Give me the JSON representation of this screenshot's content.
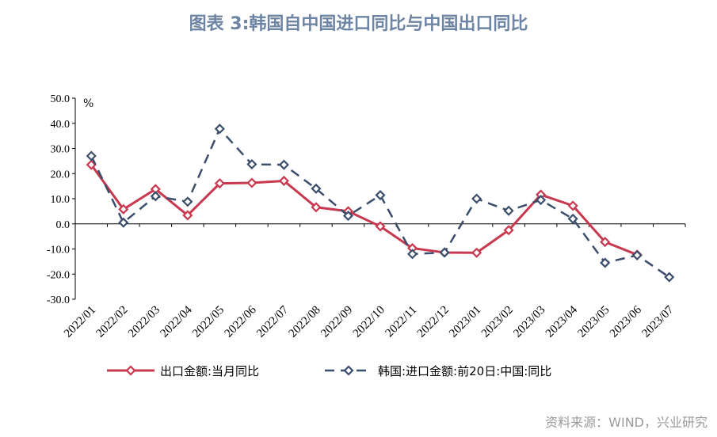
{
  "chart_data": {
    "type": "line",
    "title": "图表 3:韩国自中国进口同比与中国出口同比",
    "ylabel": "%",
    "ylim": [
      -30,
      50
    ],
    "yticks": [
      "50.0",
      "40.0",
      "30.0",
      "20.0",
      "10.0",
      "0.0",
      "-10.0",
      "-20.0",
      "-30.0"
    ],
    "categories": [
      "2022/01",
      "2022/02",
      "2022/03",
      "2022/04",
      "2022/05",
      "2022/06",
      "2022/07",
      "2022/08",
      "2022/09",
      "2022/10",
      "2022/11",
      "2022/12",
      "2023/01",
      "2023/02",
      "2023/03",
      "2023/04",
      "2023/05",
      "2023/06",
      "2023/07"
    ],
    "legend_position": "bottom",
    "grid": false,
    "series": [
      {
        "name": "出口金额:当月同比",
        "color": "#c8384e",
        "style": "solid",
        "values": [
          23.5,
          5.8,
          13.8,
          3.4,
          16.1,
          16.3,
          17.1,
          6.6,
          5.0,
          -1.0,
          -9.7,
          -11.4,
          -11.5,
          -2.5,
          11.6,
          7.2,
          -7.2,
          -12.3,
          null
        ]
      },
      {
        "name": "韩国:进口金额:前20日:中国:同比",
        "color": "#3b4e6b",
        "style": "dashed",
        "values": [
          27.0,
          0.5,
          11.0,
          8.8,
          37.8,
          23.7,
          23.5,
          14.0,
          3.2,
          11.4,
          -12.0,
          -11.4,
          10.0,
          5.2,
          9.5,
          2.0,
          -15.5,
          -12.5,
          -21.2
        ]
      }
    ]
  },
  "source": "资料来源：WIND，兴业研究"
}
